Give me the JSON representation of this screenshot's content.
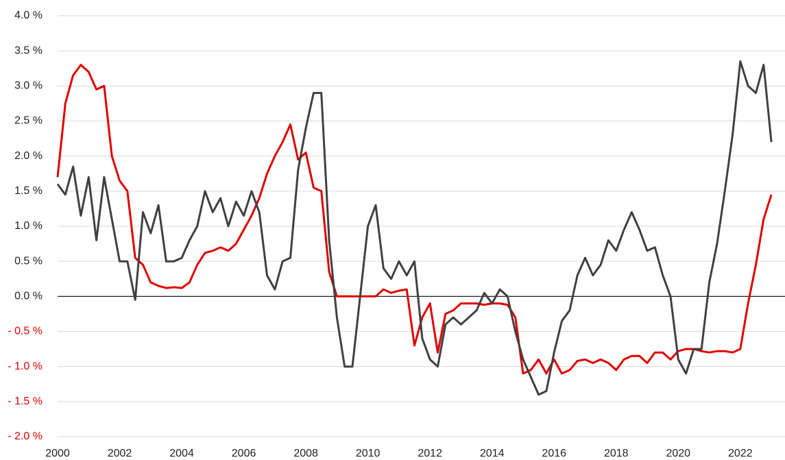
{
  "chart_data": {
    "type": "line",
    "x": [
      2000,
      2000.25,
      2000.5,
      2000.75,
      2001,
      2001.25,
      2001.5,
      2001.75,
      2002,
      2002.25,
      2002.5,
      2002.75,
      2003,
      2003.25,
      2003.5,
      2003.75,
      2004,
      2004.25,
      2004.5,
      2004.75,
      2005,
      2005.25,
      2005.5,
      2005.75,
      2006,
      2006.25,
      2006.5,
      2006.75,
      2007,
      2007.25,
      2007.5,
      2007.75,
      2008,
      2008.25,
      2008.5,
      2008.75,
      2009,
      2009.25,
      2009.5,
      2009.75,
      2010,
      2010.25,
      2010.5,
      2010.75,
      2011,
      2011.25,
      2011.5,
      2011.75,
      2012,
      2012.25,
      2012.5,
      2012.75,
      2013,
      2013.25,
      2013.5,
      2013.75,
      2014,
      2014.25,
      2014.5,
      2014.75,
      2015,
      2015.25,
      2015.5,
      2015.75,
      2016,
      2016.25,
      2016.5,
      2016.75,
      2017,
      2017.25,
      2017.5,
      2017.75,
      2018,
      2018.25,
      2018.5,
      2018.75,
      2019,
      2019.25,
      2019.5,
      2019.75,
      2020,
      2020.25,
      2020.5,
      2020.75,
      2021,
      2021.25,
      2021.5,
      2021.75,
      2022,
      2022.25,
      2022.5,
      2022.75,
      2023
    ],
    "series": [
      {
        "color": "#e00000",
        "values": [
          1.7,
          2.75,
          3.15,
          3.3,
          3.2,
          2.95,
          3.0,
          2.0,
          1.65,
          1.5,
          0.55,
          0.45,
          0.2,
          0.15,
          0.12,
          0.13,
          0.12,
          0.2,
          0.45,
          0.62,
          0.65,
          0.7,
          0.65,
          0.75,
          0.95,
          1.15,
          1.4,
          1.75,
          2.0,
          2.2,
          2.45,
          1.95,
          2.05,
          1.55,
          1.5,
          0.35,
          0,
          0,
          0,
          0,
          0,
          0,
          0.1,
          0.05,
          0.08,
          0.1,
          -0.7,
          -0.3,
          -0.1,
          -0.8,
          -0.25,
          -0.2,
          -0.1,
          -0.1,
          -0.1,
          -0.12,
          -0.1,
          -0.1,
          -0.12,
          -0.3,
          -1.1,
          -1.05,
          -0.9,
          -1.1,
          -0.9,
          -1.1,
          -1.05,
          -0.92,
          -0.9,
          -0.95,
          -0.9,
          -0.95,
          -1.05,
          -0.9,
          -0.85,
          -0.85,
          -0.95,
          -0.8,
          -0.8,
          -0.9,
          -0.78,
          -0.75,
          -0.75,
          -0.78,
          -0.8,
          -0.78,
          -0.78,
          -0.8,
          -0.75,
          -0.1,
          0.45,
          1.1,
          1.45
        ]
      },
      {
        "color": "#404040",
        "values": [
          1.6,
          1.45,
          1.85,
          1.15,
          1.7,
          0.8,
          1.7,
          1.1,
          0.5,
          0.5,
          -0.05,
          1.2,
          0.9,
          1.3,
          0.5,
          0.5,
          0.55,
          0.8,
          1.0,
          1.5,
          1.2,
          1.4,
          1.0,
          1.35,
          1.15,
          1.5,
          1.2,
          0.3,
          0.1,
          0.5,
          0.55,
          1.8,
          2.4,
          2.9,
          2.9,
          0.8,
          -0.3,
          -1.0,
          -1.0,
          0.0,
          1.0,
          1.3,
          0.4,
          0.25,
          0.5,
          0.3,
          0.5,
          -0.6,
          -0.9,
          -1.0,
          -0.4,
          -0.3,
          -0.4,
          -0.3,
          -0.2,
          0.05,
          -0.1,
          0.1,
          0.0,
          -0.5,
          -0.9,
          -1.15,
          -1.4,
          -1.35,
          -0.8,
          -0.35,
          -0.2,
          0.3,
          0.55,
          0.3,
          0.45,
          0.8,
          0.65,
          0.95,
          1.2,
          0.95,
          0.65,
          0.7,
          0.3,
          0.0,
          -0.9,
          -1.1,
          -0.75,
          -0.75,
          0.2,
          0.75,
          1.5,
          2.3,
          3.35,
          3.0,
          2.9,
          3.3,
          2.2
        ]
      }
    ],
    "xlim": [
      2000,
      2023.44
    ],
    "xticks": [
      2000,
      2002,
      2004,
      2006,
      2008,
      2010,
      2012,
      2014,
      2016,
      2018,
      2020,
      2022
    ],
    "ylim": [
      -2.0,
      4.0
    ],
    "yticks": [
      {
        "value": 4.0,
        "label": "4.0 %"
      },
      {
        "value": 3.5,
        "label": "3.5 %"
      },
      {
        "value": 3.0,
        "label": "3.0 %"
      },
      {
        "value": 2.5,
        "label": "2.5 %"
      },
      {
        "value": 2.0,
        "label": "2.0 %"
      },
      {
        "value": 1.5,
        "label": "1.5 %"
      },
      {
        "value": 1.0,
        "label": "1.0 %"
      },
      {
        "value": 0.5,
        "label": "0.5 %"
      },
      {
        "value": 0.0,
        "label": "0.0 %"
      },
      {
        "value": -0.5,
        "label": "- 0.5 %"
      },
      {
        "value": -1.0,
        "label": "- 1.0 %"
      },
      {
        "value": -1.5,
        "label": "- 1.5 %"
      },
      {
        "value": -2.0,
        "label": "- 2.0 %"
      }
    ],
    "grid": true,
    "negative_tick_color": "#e00000"
  }
}
